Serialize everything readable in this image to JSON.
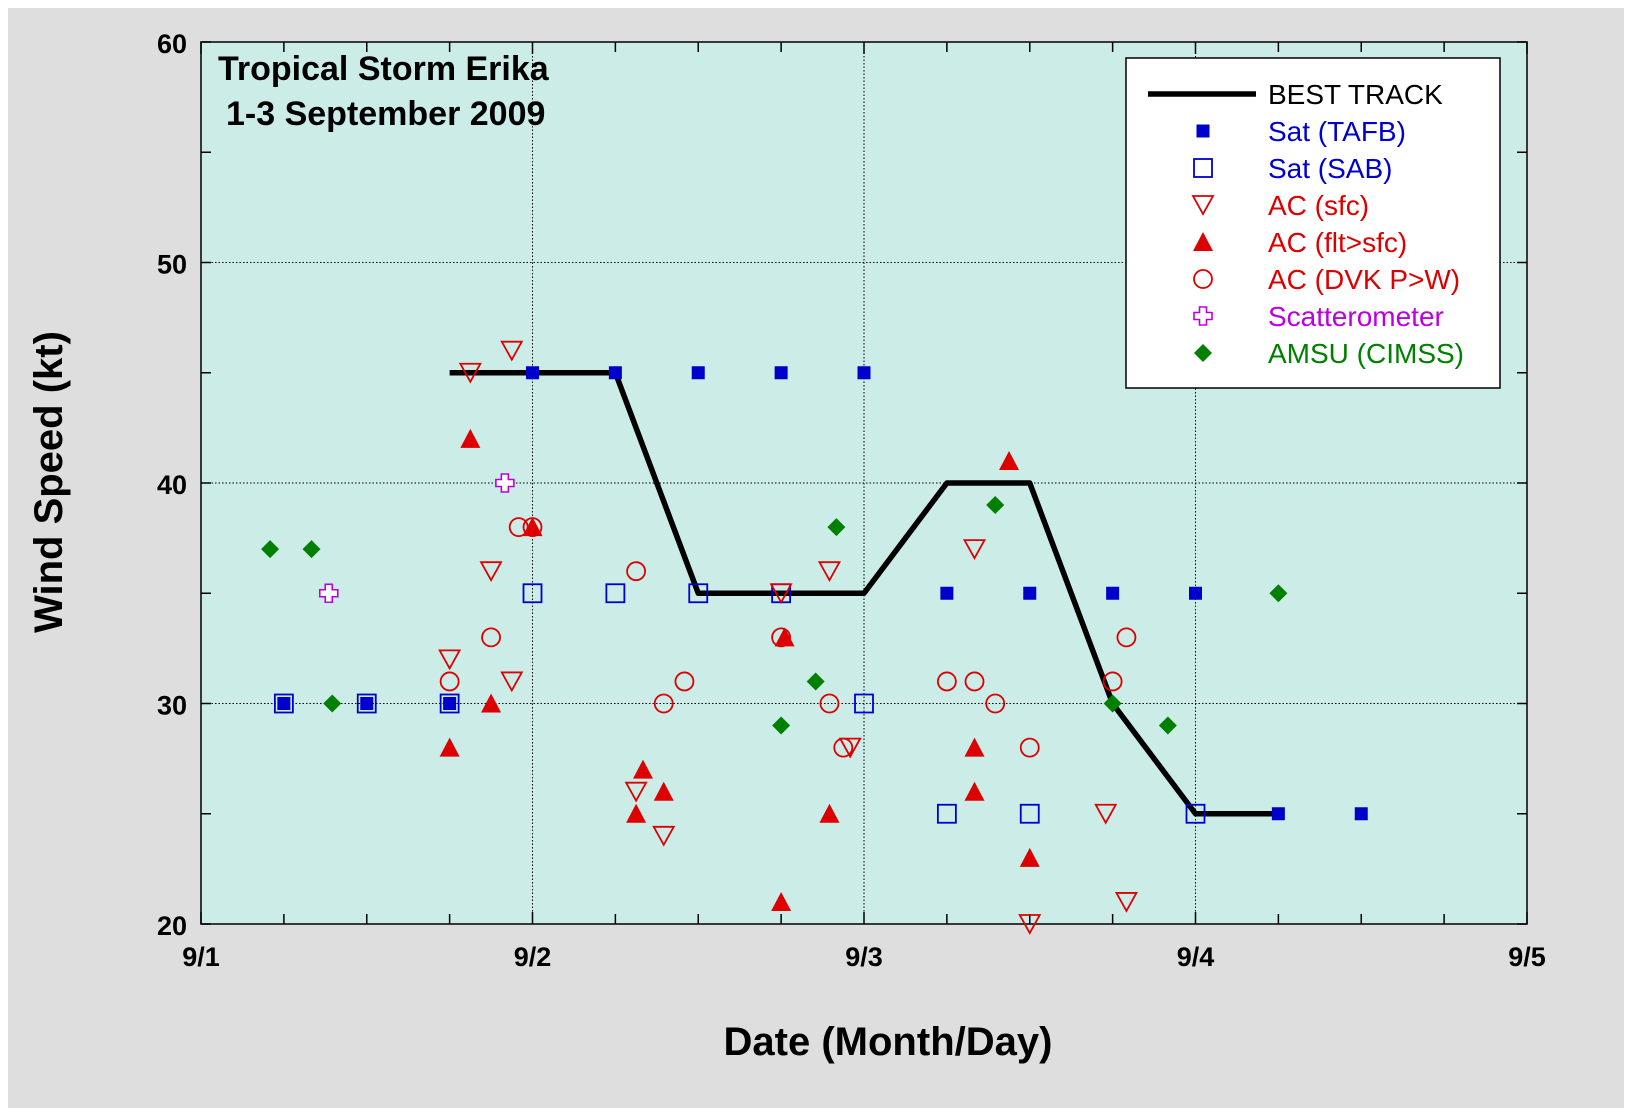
{
  "chart_data": {
    "type": "scatter",
    "title_lines": [
      "Tropical Storm Erika",
      "1-3 September 2009"
    ],
    "xlabel": "Date (Month/Day)",
    "ylabel": "Wind Speed (kt)",
    "xlim": [
      "2009-09-01",
      "2009-09-05"
    ],
    "ylim": [
      20,
      60
    ],
    "x_tick_labels": [
      "9/1",
      "9/2",
      "9/3",
      "9/4",
      "9/5"
    ],
    "y_tick_labels": [
      "20",
      "30",
      "40",
      "50",
      "60"
    ],
    "grid": true,
    "legend_position": "top-right",
    "series": [
      {
        "name": "BEST TRACK",
        "marker": "line",
        "color": "#000000",
        "x": [
          "2009-09-01 18:00",
          "2009-09-02 00:00",
          "2009-09-02 06:00",
          "2009-09-02 12:00",
          "2009-09-02 18:00",
          "2009-09-03 00:00",
          "2009-09-03 06:00",
          "2009-09-03 12:00",
          "2009-09-03 18:00",
          "2009-09-04 00:00",
          "2009-09-04 06:00"
        ],
        "y": [
          45,
          45,
          45,
          35,
          35,
          35,
          40,
          40,
          30,
          25,
          25
        ]
      },
      {
        "name": "Sat (TAFB)",
        "marker": "filled-square",
        "color": "#0000cc",
        "x": [
          "2009-09-01 06:00",
          "2009-09-01 12:00",
          "2009-09-01 18:00",
          "2009-09-02 00:00",
          "2009-09-02 06:00",
          "2009-09-02 12:00",
          "2009-09-02 18:00",
          "2009-09-03 00:00",
          "2009-09-03 06:00",
          "2009-09-03 12:00",
          "2009-09-03 18:00",
          "2009-09-04 00:00",
          "2009-09-04 06:00",
          "2009-09-04 12:00"
        ],
        "y": [
          30,
          30,
          30,
          45,
          45,
          45,
          45,
          45,
          35,
          35,
          35,
          35,
          25,
          25
        ]
      },
      {
        "name": "Sat (SAB)",
        "marker": "open-square",
        "color": "#0000cc",
        "x": [
          "2009-09-01 06:00",
          "2009-09-01 12:00",
          "2009-09-01 18:00",
          "2009-09-02 00:00",
          "2009-09-02 06:00",
          "2009-09-02 12:00",
          "2009-09-02 18:00",
          "2009-09-03 00:00",
          "2009-09-03 06:00",
          "2009-09-03 12:00",
          "2009-09-04 00:00"
        ],
        "y": [
          30,
          30,
          30,
          35,
          35,
          35,
          35,
          30,
          25,
          25,
          25
        ]
      },
      {
        "name": "AC (sfc)",
        "marker": "open-triangle-down",
        "color": "#dd0000",
        "x": [
          "2009-09-01 18:00",
          "2009-09-01 19:30",
          "2009-09-01 21:00",
          "2009-09-01 22:30",
          "2009-09-01 22:30",
          "2009-09-02 07:30",
          "2009-09-02 09:30",
          "2009-09-02 18:00",
          "2009-09-02 21:30",
          "2009-09-02 23:00",
          "2009-09-03 08:00",
          "2009-09-03 12:00",
          "2009-09-03 17:30",
          "2009-09-03 19:00"
        ],
        "y": [
          32,
          45,
          36,
          46,
          31,
          26,
          24,
          35,
          36,
          28,
          37,
          20,
          25,
          21
        ]
      },
      {
        "name": "AC (flt>sfc)",
        "marker": "filled-triangle-up",
        "color": "#dd0000",
        "x": [
          "2009-09-01 18:00",
          "2009-09-01 19:30",
          "2009-09-01 21:00",
          "2009-09-02 00:00",
          "2009-09-02 07:30",
          "2009-09-02 08:00",
          "2009-09-02 09:30",
          "2009-09-02 18:00",
          "2009-09-02 18:15",
          "2009-09-02 21:30",
          "2009-09-03 08:00",
          "2009-09-03 08:00",
          "2009-09-03 10:30",
          "2009-09-03 12:00"
        ],
        "y": [
          28,
          42,
          30,
          38,
          25,
          27,
          26,
          21,
          33,
          25,
          28,
          26,
          41,
          23
        ]
      },
      {
        "name": "AC (DVK P>W)",
        "marker": "open-circle",
        "color": "#dd0000",
        "x": [
          "2009-09-01 18:00",
          "2009-09-01 21:00",
          "2009-09-01 23:00",
          "2009-09-02 00:00",
          "2009-09-02 07:30",
          "2009-09-02 09:30",
          "2009-09-02 11:00",
          "2009-09-02 18:00",
          "2009-09-02 21:30",
          "2009-09-02 22:30",
          "2009-09-03 06:00",
          "2009-09-03 08:00",
          "2009-09-03 09:30",
          "2009-09-03 12:00",
          "2009-09-03 18:00",
          "2009-09-03 19:00"
        ],
        "y": [
          31,
          33,
          38,
          38,
          36,
          30,
          31,
          33,
          30,
          28,
          31,
          31,
          30,
          28,
          31,
          33
        ]
      },
      {
        "name": "Scatterometer",
        "marker": "open-cross",
        "color": "#bb00dd",
        "x": [
          "2009-09-01 09:15",
          "2009-09-01 22:00"
        ],
        "y": [
          35,
          40
        ]
      },
      {
        "name": "AMSU (CIMSS)",
        "marker": "filled-diamond",
        "color": "#008000",
        "x": [
          "2009-09-01 05:00",
          "2009-09-01 08:00",
          "2009-09-01 09:30",
          "2009-09-02 18:00",
          "2009-09-02 20:30",
          "2009-09-02 22:00",
          "2009-09-03 09:30",
          "2009-09-03 18:00",
          "2009-09-03 22:00",
          "2009-09-04 06:00"
        ],
        "y": [
          37,
          37,
          30,
          29,
          31,
          38,
          39,
          30,
          29,
          35
        ]
      }
    ]
  },
  "legend_items": [
    "BEST TRACK",
    "Sat (TAFB)",
    "Sat (SAB)",
    "AC (sfc)",
    "AC (flt>sfc)",
    "AC (DVK P>W)",
    "Scatterometer",
    "AMSU (CIMSS)"
  ]
}
